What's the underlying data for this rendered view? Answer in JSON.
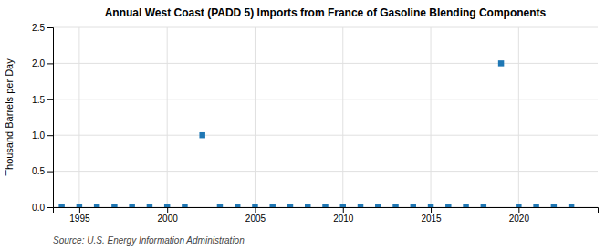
{
  "chart_data": {
    "type": "scatter",
    "title": "Annual West Coast (PADD 5) Imports from France of Gasoline Blending Components",
    "ylabel": "Thousand Barrels per Day",
    "source": "Source: U.S. Energy Information Administration",
    "marker": "square",
    "grid": true,
    "x": [
      1994,
      1995,
      1996,
      1997,
      1998,
      1999,
      2000,
      2001,
      2002,
      2003,
      2004,
      2005,
      2006,
      2007,
      2008,
      2009,
      2010,
      2011,
      2012,
      2013,
      2014,
      2015,
      2016,
      2017,
      2018,
      2019,
      2020,
      2021,
      2022,
      2023
    ],
    "values": [
      0.0,
      0.0,
      0.0,
      0.0,
      0.0,
      0.0,
      0.0,
      0.0,
      1.0,
      0.0,
      0.0,
      0.0,
      0.0,
      0.0,
      0.0,
      0.0,
      0.0,
      0.0,
      0.0,
      0.0,
      0.0,
      0.0,
      0.0,
      0.0,
      0.0,
      2.0,
      0.0,
      0.0,
      0.0,
      0.0
    ],
    "xlim": [
      1993.5,
      2024.5
    ],
    "ylim": [
      0.0,
      2.5
    ],
    "xticks": [
      1995,
      2000,
      2005,
      2010,
      2015,
      2020
    ],
    "yticks": [
      {
        "value": 0.0,
        "label": "0.0"
      },
      0.5,
      {
        "value": 1.0,
        "label": "1.0"
      },
      1.5,
      {
        "value": 2.0,
        "label": "2.0"
      },
      2.5
    ]
  }
}
